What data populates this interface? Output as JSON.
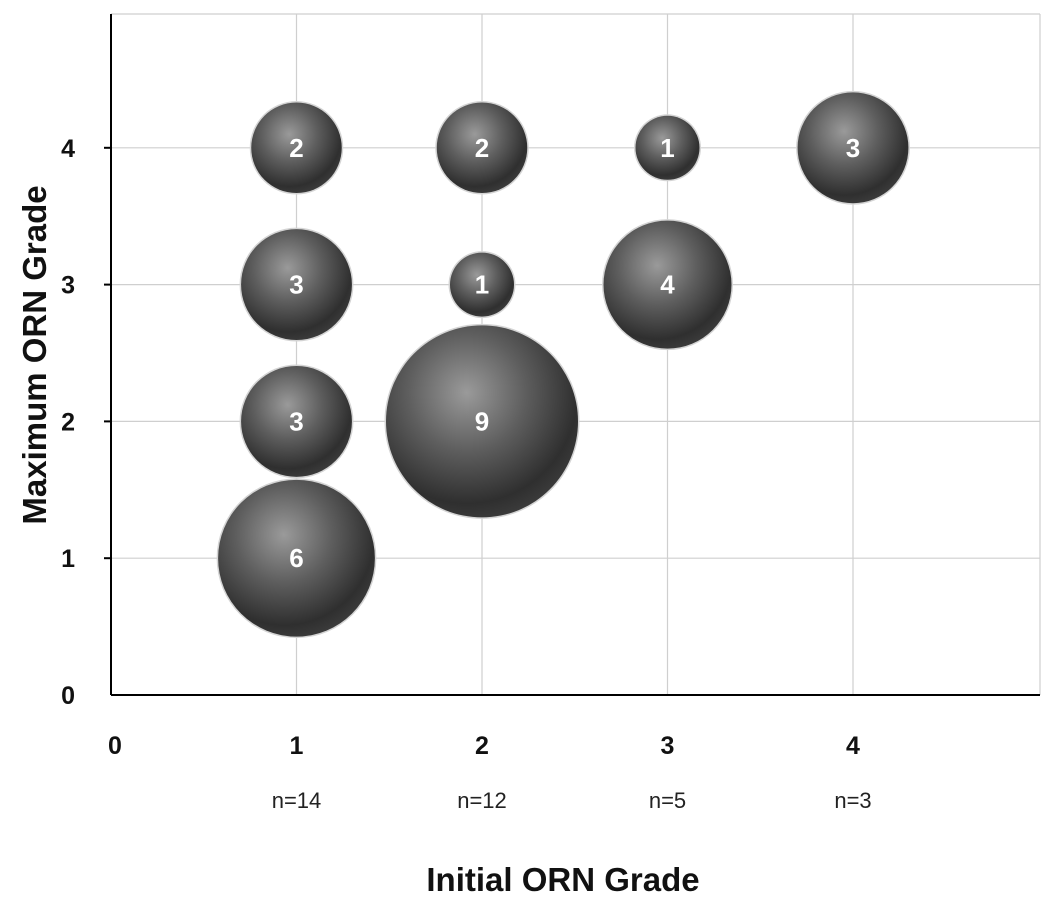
{
  "chart_data": {
    "type": "scatter",
    "xlabel": "Initial ORN Grade",
    "ylabel": "Maximum ORN Grade",
    "xlim": [
      0,
      5
    ],
    "ylim": [
      0,
      5
    ],
    "x_ticks": [
      0,
      1,
      2,
      3,
      4
    ],
    "y_ticks": [
      0,
      1,
      2,
      3,
      4
    ],
    "x_tick_counts": [
      {
        "x": 1,
        "label": "n=14"
      },
      {
        "x": 2,
        "label": "n=12"
      },
      {
        "x": 3,
        "label": "n=5"
      },
      {
        "x": 4,
        "label": "n=3"
      }
    ],
    "grid": true,
    "bubble_color": "#5a5a5a",
    "points": [
      {
        "x": 1,
        "y": 4,
        "count": 2
      },
      {
        "x": 2,
        "y": 4,
        "count": 2
      },
      {
        "x": 3,
        "y": 4,
        "count": 1
      },
      {
        "x": 4,
        "y": 4,
        "count": 3
      },
      {
        "x": 1,
        "y": 3,
        "count": 3
      },
      {
        "x": 2,
        "y": 3,
        "count": 1
      },
      {
        "x": 3,
        "y": 3,
        "count": 4
      },
      {
        "x": 1,
        "y": 2,
        "count": 3
      },
      {
        "x": 2,
        "y": 2,
        "count": 9
      },
      {
        "x": 1,
        "y": 1,
        "count": 6
      }
    ]
  }
}
